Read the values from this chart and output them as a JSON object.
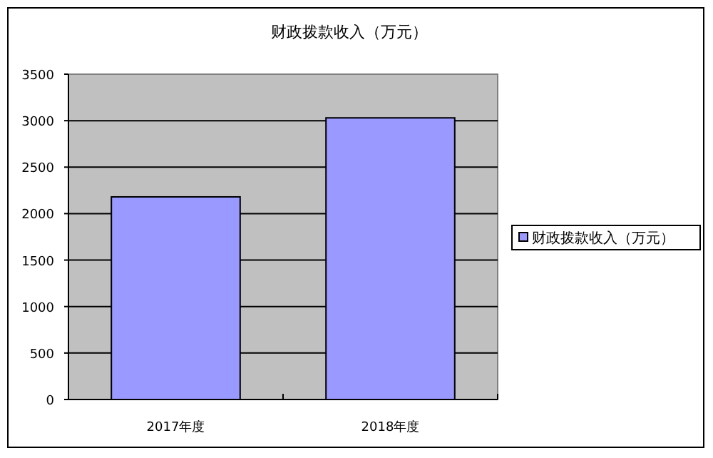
{
  "chart_data": {
    "type": "bar",
    "title": "财政拨款收入（万元）",
    "categories": [
      "2017年度",
      "2018年度"
    ],
    "series": [
      {
        "name": "财政拨款收入（万元）",
        "color": "#9999ff",
        "values": [
          2180,
          3030
        ]
      }
    ],
    "ylim": [
      0,
      3500
    ],
    "yticks": [
      0,
      500,
      1000,
      1500,
      2000,
      2500,
      3000,
      3500
    ],
    "grid": "y",
    "legend": "right"
  }
}
